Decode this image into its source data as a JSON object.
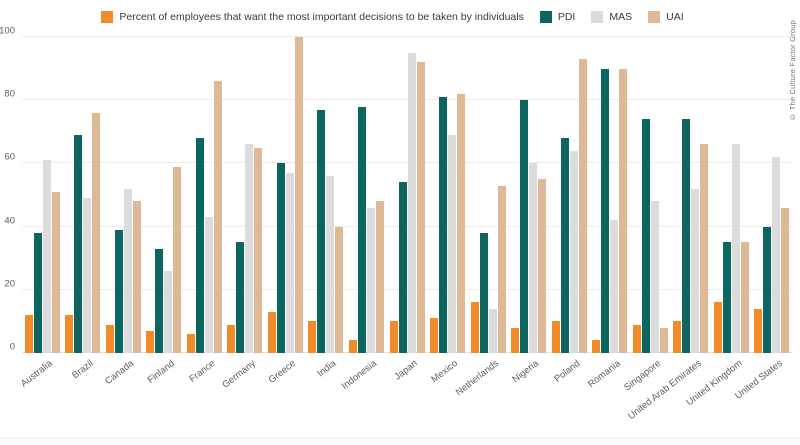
{
  "copyright": "© The Culture Factor Group",
  "chart_data": {
    "type": "bar",
    "title": "",
    "xlabel": "",
    "ylabel": "",
    "ylim": [
      0,
      100
    ],
    "y_ticks": [
      0,
      20,
      40,
      60,
      80,
      100
    ],
    "grid": "horizontal",
    "legend_position": "top",
    "categories": [
      "Australia",
      "Brazil",
      "Canada",
      "Finland",
      "France",
      "Germany",
      "Greece",
      "India",
      "Indonesia",
      "Japan",
      "Mexico",
      "Netherlands",
      "Nigeria",
      "Poland",
      "Romania",
      "Singapore",
      "United Arab Emirates",
      "United Kingdom",
      "United States"
    ],
    "series": [
      {
        "name": "Percent of employees that want the most important decisions to be taken by individuals",
        "color": "#F18A28",
        "values": [
          12,
          12,
          9,
          7,
          6,
          9,
          13,
          10,
          4,
          10,
          11,
          16,
          8,
          10,
          4,
          9,
          10,
          16,
          14
        ]
      },
      {
        "name": "PDI",
        "color": "#0C655F",
        "values": [
          38,
          69,
          39,
          33,
          68,
          35,
          60,
          77,
          78,
          54,
          81,
          38,
          80,
          68,
          90,
          74,
          74,
          35,
          40
        ]
      },
      {
        "name": "MAS",
        "color": "#DCDCDC",
        "values": [
          61,
          49,
          52,
          26,
          43,
          66,
          57,
          56,
          46,
          95,
          69,
          14,
          60,
          64,
          42,
          48,
          52,
          66,
          62
        ]
      },
      {
        "name": "UAI",
        "color": "#DEB996",
        "values": [
          51,
          76,
          48,
          59,
          86,
          65,
          100,
          40,
          48,
          92,
          82,
          53,
          55,
          93,
          90,
          8,
          66,
          35,
          46
        ]
      }
    ]
  }
}
